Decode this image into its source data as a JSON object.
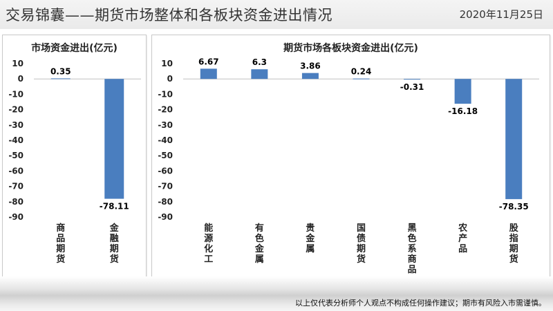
{
  "header": {
    "title": "交易锦囊——期货市场整体和各板块资金进出情况",
    "date": "2020年11月25日"
  },
  "footer": {
    "disclaimer": "以上仅代表分析师个人观点不构成任何操作建议；期市有风险入市需谨慎。"
  },
  "colors": {
    "bar": "#4a7ebf"
  },
  "chart_data": [
    {
      "type": "bar",
      "title": "市场资金进出(亿元)",
      "categories": [
        "商品期货",
        "金融期货"
      ],
      "values": [
        0.35,
        -78.11
      ],
      "data_labels": [
        "0.35",
        "-78.11"
      ],
      "ylim": [
        -90,
        10
      ],
      "yticks": [
        10,
        0,
        -10,
        -20,
        -30,
        -40,
        -50,
        -60,
        -70,
        -80,
        -90
      ],
      "grid": false
    },
    {
      "type": "bar",
      "title": "期货市场各板块资金进出(亿元)",
      "categories": [
        "能源化工",
        "有色金属",
        "贵金属",
        "国债期货",
        "黑色系商品",
        "农产品",
        "股指期货"
      ],
      "values": [
        6.67,
        6.3,
        3.86,
        0.24,
        -0.31,
        -16.18,
        -78.35
      ],
      "data_labels": [
        "6.67",
        "6.3",
        "3.86",
        "0.24",
        "-0.31",
        "-16.18",
        "-78.35"
      ],
      "ylim": [
        -90,
        10
      ],
      "yticks": [
        10,
        0,
        -10,
        -20,
        -30,
        -40,
        -50,
        -60,
        -70,
        -80,
        -90
      ],
      "grid": false
    }
  ]
}
